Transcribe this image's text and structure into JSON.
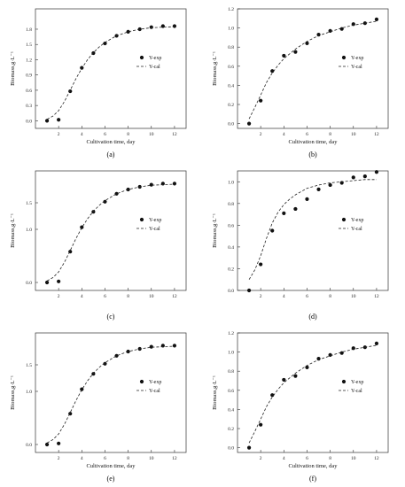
{
  "chart_data": [
    {
      "type": "scatter",
      "panel_label": "(a)",
      "xlabel": "Cultivation time, day",
      "ylabel": "Biomass,g·L⁻¹",
      "xlim": [
        0,
        13
      ],
      "ylim": [
        -0.15,
        2.2
      ],
      "x_ticks": [
        2,
        4,
        6,
        8,
        10,
        12
      ],
      "y_ticks": [
        0.0,
        0.3,
        0.6,
        0.9,
        1.2,
        1.5,
        1.8
      ],
      "y_tick_labels": [
        "0.0",
        "0.3",
        "0.6",
        "0.9",
        "1.2",
        "1.5",
        "1.8"
      ],
      "legend": {
        "position": "right",
        "items": [
          "Y-exp",
          "Y-cal"
        ]
      },
      "series": [
        {
          "name": "Y-exp",
          "style": "points",
          "x": [
            1,
            2,
            3,
            4,
            5,
            6,
            7,
            8,
            9,
            10,
            11,
            12
          ],
          "y": [
            0.0,
            0.02,
            0.58,
            1.04,
            1.33,
            1.52,
            1.67,
            1.75,
            1.8,
            1.84,
            1.86,
            1.86
          ]
        },
        {
          "name": "Y-cal",
          "style": "dashed",
          "x": [
            1,
            1.5,
            2,
            2.5,
            3,
            3.5,
            4,
            4.5,
            5,
            5.5,
            6,
            7,
            8,
            9,
            10,
            11,
            12
          ],
          "y": [
            0.03,
            0.09,
            0.2,
            0.38,
            0.6,
            0.83,
            1.03,
            1.2,
            1.34,
            1.45,
            1.54,
            1.67,
            1.75,
            1.8,
            1.83,
            1.84,
            1.85
          ]
        }
      ]
    },
    {
      "type": "scatter",
      "panel_label": "(b)",
      "xlabel": "Cultivation time, day",
      "ylabel": "Biomass,g·L⁻¹",
      "xlim": [
        0,
        13
      ],
      "ylim": [
        -0.05,
        1.2
      ],
      "x_ticks": [
        2,
        4,
        6,
        8,
        10,
        12
      ],
      "y_ticks": [
        0.0,
        0.2,
        0.4,
        0.6,
        0.8,
        1.0,
        1.2
      ],
      "y_tick_labels": [
        "0.0",
        "0.2",
        "0.4",
        "0.6",
        "0.8",
        "1.0",
        "1.2"
      ],
      "legend": {
        "position": "right",
        "items": [
          "Y-exp",
          "Y-cal"
        ]
      },
      "series": [
        {
          "name": "Y-exp",
          "style": "points",
          "x": [
            1,
            2,
            3,
            4,
            5,
            6,
            7,
            8,
            9,
            10,
            11,
            12
          ],
          "y": [
            0.0,
            0.24,
            0.55,
            0.71,
            0.75,
            0.84,
            0.93,
            0.97,
            0.99,
            1.04,
            1.05,
            1.09
          ]
        },
        {
          "name": "Y-cal",
          "style": "dashed",
          "x": [
            1,
            1.5,
            2,
            2.5,
            3,
            3.5,
            4,
            5,
            6,
            7,
            8,
            9,
            10,
            11,
            12
          ],
          "y": [
            0.05,
            0.17,
            0.3,
            0.43,
            0.53,
            0.61,
            0.68,
            0.78,
            0.86,
            0.92,
            0.96,
            1.0,
            1.03,
            1.05,
            1.07
          ]
        }
      ]
    },
    {
      "type": "scatter",
      "panel_label": "(c)",
      "xlabel": "",
      "ylabel": "Biomass,g·L⁻¹",
      "xlim": [
        0,
        13
      ],
      "ylim": [
        -0.15,
        2.1
      ],
      "x_ticks": [
        2,
        4,
        6,
        8,
        10,
        12
      ],
      "y_ticks": [
        0.0,
        1.0,
        1.5
      ],
      "y_tick_labels": [
        "0.0",
        "1.0",
        "1.5"
      ],
      "legend": {
        "position": "right",
        "items": [
          "Y-exp",
          "Y-cal"
        ]
      },
      "series": [
        {
          "name": "Y-exp",
          "style": "points",
          "x": [
            1,
            2,
            3,
            4,
            5,
            6,
            7,
            8,
            9,
            10,
            11,
            12
          ],
          "y": [
            0.0,
            0.02,
            0.58,
            1.04,
            1.33,
            1.52,
            1.67,
            1.75,
            1.8,
            1.84,
            1.86,
            1.86
          ]
        },
        {
          "name": "Y-cal",
          "style": "dashed",
          "x": [
            1,
            1.5,
            2,
            2.5,
            3,
            3.5,
            4,
            4.5,
            5,
            5.5,
            6,
            7,
            8,
            9,
            10,
            11,
            12
          ],
          "y": [
            0.03,
            0.09,
            0.2,
            0.38,
            0.6,
            0.83,
            1.03,
            1.2,
            1.34,
            1.45,
            1.54,
            1.67,
            1.75,
            1.8,
            1.83,
            1.84,
            1.85
          ]
        }
      ]
    },
    {
      "type": "scatter",
      "panel_label": "(d)",
      "xlabel": "",
      "ylabel": "Biomass,g·L⁻¹",
      "xlim": [
        0,
        13
      ],
      "ylim": [
        0.0,
        1.1
      ],
      "x_ticks": [
        2,
        4,
        6,
        8,
        10,
        12
      ],
      "y_ticks": [
        0.0,
        0.2,
        0.4,
        0.6,
        0.8,
        1.0
      ],
      "y_tick_labels": [
        "0.0",
        "0.2",
        "0.4",
        "0.6",
        "0.8",
        "1.0"
      ],
      "legend": {
        "position": "right",
        "items": [
          "Y-exp",
          "Y-cal"
        ]
      },
      "series": [
        {
          "name": "Y-exp",
          "style": "points",
          "x": [
            1,
            2,
            3,
            4,
            5,
            6,
            7,
            8,
            9,
            10,
            11,
            12
          ],
          "y": [
            0.0,
            0.24,
            0.55,
            0.71,
            0.75,
            0.84,
            0.93,
            0.97,
            0.99,
            1.04,
            1.05,
            1.09
          ]
        },
        {
          "name": "Y-cal",
          "style": "dashed",
          "x": [
            1,
            1.5,
            2,
            2.5,
            3,
            3.5,
            4,
            4.5,
            5,
            6,
            7,
            8,
            9,
            10,
            11,
            12
          ],
          "y": [
            0.1,
            0.19,
            0.32,
            0.48,
            0.62,
            0.72,
            0.79,
            0.84,
            0.88,
            0.94,
            0.97,
            0.99,
            1.0,
            1.01,
            1.02,
            1.02
          ]
        }
      ]
    },
    {
      "type": "scatter",
      "panel_label": "(e)",
      "xlabel": "Cultivation time, day",
      "ylabel": "Biomass,g·L⁻¹",
      "xlim": [
        0,
        13
      ],
      "ylim": [
        -0.15,
        2.1
      ],
      "x_ticks": [
        2,
        4,
        6,
        8,
        10,
        12
      ],
      "y_ticks": [
        0.0,
        1.0,
        1.5
      ],
      "y_tick_labels": [
        "0.0",
        "1.0",
        "1.5"
      ],
      "legend": {
        "position": "right",
        "items": [
          "Y-exp",
          "Y-cal"
        ]
      },
      "series": [
        {
          "name": "Y-exp",
          "style": "points",
          "x": [
            1,
            2,
            3,
            4,
            5,
            6,
            7,
            8,
            9,
            10,
            11,
            12
          ],
          "y": [
            0.0,
            0.02,
            0.58,
            1.04,
            1.33,
            1.52,
            1.67,
            1.75,
            1.8,
            1.84,
            1.86,
            1.86
          ]
        },
        {
          "name": "Y-cal",
          "style": "dashed",
          "x": [
            1,
            1.5,
            2,
            2.5,
            3,
            3.5,
            4,
            4.5,
            5,
            5.5,
            6,
            7,
            8,
            9,
            10,
            11,
            12
          ],
          "y": [
            0.03,
            0.09,
            0.2,
            0.38,
            0.6,
            0.83,
            1.03,
            1.2,
            1.34,
            1.45,
            1.54,
            1.67,
            1.75,
            1.8,
            1.83,
            1.84,
            1.85
          ]
        }
      ]
    },
    {
      "type": "scatter",
      "panel_label": "(f)",
      "xlabel": "Cultivation time, day",
      "ylabel": "Biomass,g·L⁻¹",
      "xlim": [
        0,
        13
      ],
      "ylim": [
        -0.05,
        1.2
      ],
      "x_ticks": [
        2,
        4,
        6,
        8,
        10,
        12
      ],
      "y_ticks": [
        0.0,
        0.2,
        0.4,
        0.6,
        0.8,
        1.0,
        1.2
      ],
      "y_tick_labels": [
        "0.0",
        "0.2",
        "0.4",
        "0.6",
        "0.8",
        "1.0",
        "1.2"
      ],
      "legend": {
        "position": "right",
        "items": [
          "Y-exp",
          "Y-cal"
        ]
      },
      "series": [
        {
          "name": "Y-exp",
          "style": "points",
          "x": [
            1,
            2,
            3,
            4,
            5,
            6,
            7,
            8,
            9,
            10,
            11,
            12
          ],
          "y": [
            0.0,
            0.24,
            0.55,
            0.71,
            0.75,
            0.84,
            0.93,
            0.97,
            0.99,
            1.04,
            1.05,
            1.09
          ]
        },
        {
          "name": "Y-cal",
          "style": "dashed",
          "x": [
            1,
            1.5,
            2,
            2.5,
            3,
            3.5,
            4,
            5,
            6,
            7,
            8,
            9,
            10,
            11,
            12
          ],
          "y": [
            0.05,
            0.17,
            0.3,
            0.43,
            0.53,
            0.61,
            0.68,
            0.78,
            0.86,
            0.92,
            0.96,
            1.0,
            1.03,
            1.05,
            1.07
          ]
        }
      ]
    }
  ]
}
